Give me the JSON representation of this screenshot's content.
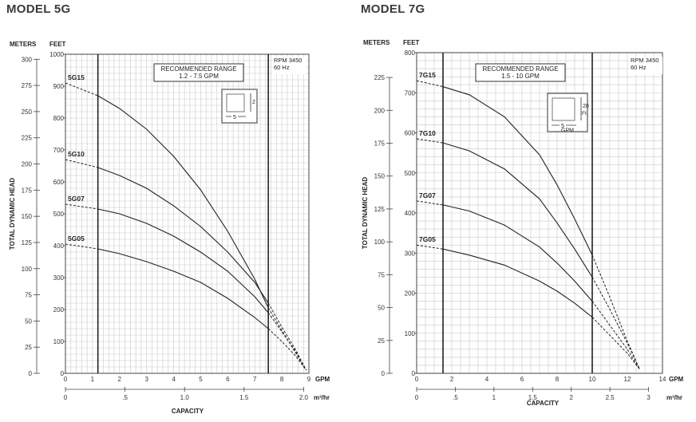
{
  "chart_data": [
    {
      "type": "line",
      "title": "MODEL 5G",
      "xlabel": "CAPACITY",
      "ylabel": "TOTAL DYNAMIC HEAD",
      "units": {
        "left": "METERS",
        "right": "FEET",
        "x": "GPM",
        "x2": "m³/hr"
      },
      "xlim": [
        0,
        9
      ],
      "ylim_ft": [
        0,
        1000
      ],
      "x_ticks_gpm": [
        "0",
        "1",
        "2",
        "3",
        "4",
        "5",
        "6",
        "7",
        "8",
        "9"
      ],
      "x2_ticks": [
        {
          "label": "0",
          "m3hr": 0
        },
        {
          "label": ".5",
          "m3hr": 0.5
        },
        {
          "label": "1.0",
          "m3hr": 1.0
        },
        {
          "label": "1.5",
          "m3hr": 1.5
        },
        {
          "label": "2.0",
          "m3hr": 2.0
        }
      ],
      "ft_ticks": [
        "0",
        "100",
        "200",
        "300",
        "400",
        "500",
        "600",
        "700",
        "800",
        "900",
        "1000"
      ],
      "m_ticks": [
        "0",
        "25",
        "50",
        "75",
        "100",
        "125",
        "150",
        "175",
        "200",
        "225",
        "250",
        "275",
        "300"
      ],
      "recommended_range": {
        "label": "RECOMMENDED RANGE",
        "range_text": "1.2 - 7.5 GPM",
        "min": 1.2,
        "max": 7.5
      },
      "rpm_note": [
        "RPM 3450",
        "60 Hz"
      ],
      "scale_box": {
        "v": "2",
        "h": "5"
      },
      "series": [
        {
          "name": "5G15",
          "x": [
            0,
            1.2,
            2,
            3,
            4,
            5,
            6,
            7,
            7.5,
            8,
            8.5,
            8.9
          ],
          "y": [
            910,
            870,
            830,
            765,
            680,
            575,
            445,
            295,
            205,
            135,
            65,
            10
          ]
        },
        {
          "name": "5G10",
          "x": [
            0,
            1.2,
            2,
            3,
            4,
            5,
            6,
            7,
            7.5,
            8,
            8.5,
            8.9
          ],
          "y": [
            670,
            645,
            620,
            580,
            525,
            460,
            380,
            285,
            220,
            145,
            75,
            10
          ]
        },
        {
          "name": "5G07",
          "x": [
            0,
            1.2,
            2,
            3,
            4,
            5,
            6,
            7,
            7.5,
            8,
            8.5,
            8.9
          ],
          "y": [
            530,
            515,
            500,
            470,
            430,
            380,
            320,
            240,
            190,
            130,
            70,
            10
          ]
        },
        {
          "name": "5G05",
          "x": [
            0,
            1.2,
            2,
            3,
            4,
            5,
            6,
            7,
            7.5,
            8,
            8.5,
            8.9
          ],
          "y": [
            405,
            390,
            375,
            350,
            320,
            285,
            235,
            175,
            140,
            100,
            55,
            10
          ]
        }
      ]
    },
    {
      "type": "line",
      "title": "MODEL 7G",
      "xlabel": "CAPACITY",
      "ylabel": "TOTAL DYNAMIC HEAD",
      "units": {
        "left": "METERS",
        "right": "FEET",
        "x": "GPM",
        "x2": "m³/hr"
      },
      "xlim": [
        0,
        14
      ],
      "ylim_ft": [
        0,
        800
      ],
      "x_ticks_gpm": [
        "0",
        "2",
        "4",
        "6",
        "8",
        "10",
        "12",
        "14"
      ],
      "x2_ticks": [
        {
          "label": "0",
          "m3hr": 0
        },
        {
          "label": ".5",
          "m3hr": 0.5
        },
        {
          "label": "1",
          "m3hr": 1.0
        },
        {
          "label": "1.5",
          "m3hr": 1.5
        },
        {
          "label": "2",
          "m3hr": 2.0
        },
        {
          "label": "2.5",
          "m3hr": 2.5
        },
        {
          "label": "3",
          "m3hr": 3.0
        }
      ],
      "ft_ticks": [
        "0",
        "100",
        "200",
        "300",
        "400",
        "500",
        "600",
        "700",
        "800"
      ],
      "m_ticks": [
        "0",
        "25",
        "50",
        "75",
        "100",
        "125",
        "150",
        "175",
        "200",
        "225"
      ],
      "recommended_range": {
        "label": "RECOMMENDED RANGE",
        "range_text": "1.5 - 10 GPM",
        "min": 1.5,
        "max": 10
      },
      "rpm_note": [
        "RPM 3450",
        "60 Hz"
      ],
      "scale_box": {
        "v": "20",
        "v_unit": "Ft.",
        "h": "5",
        "h_unit": "GPM"
      },
      "series": [
        {
          "name": "7G15",
          "x": [
            0,
            1.5,
            3,
            5,
            7,
            8,
            9,
            10,
            11,
            12,
            12.7
          ],
          "y": [
            730,
            715,
            695,
            640,
            545,
            470,
            385,
            295,
            190,
            80,
            10
          ]
        },
        {
          "name": "7G10",
          "x": [
            0,
            1.5,
            3,
            5,
            7,
            8,
            9,
            10,
            11,
            12,
            12.7
          ],
          "y": [
            585,
            575,
            555,
            510,
            435,
            375,
            310,
            240,
            160,
            75,
            10
          ]
        },
        {
          "name": "7G07",
          "x": [
            0,
            1.5,
            3,
            5,
            7,
            8,
            9,
            10,
            11,
            12,
            12.7
          ],
          "y": [
            430,
            420,
            405,
            370,
            315,
            275,
            230,
            180,
            120,
            60,
            10
          ]
        },
        {
          "name": "7G05",
          "x": [
            0,
            1.5,
            3,
            5,
            7,
            8,
            9,
            10,
            11,
            12,
            12.7
          ],
          "y": [
            320,
            310,
            295,
            270,
            230,
            205,
            175,
            140,
            95,
            50,
            10
          ]
        }
      ]
    }
  ]
}
